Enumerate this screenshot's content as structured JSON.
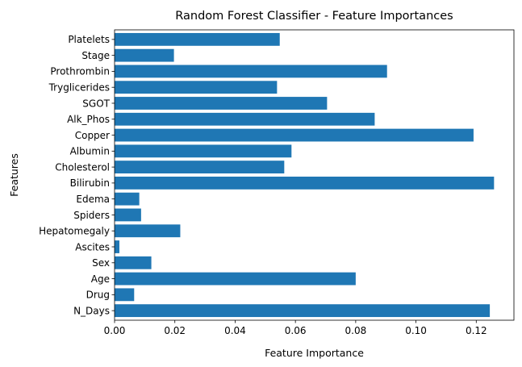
{
  "chart_data": {
    "type": "bar",
    "orientation": "horizontal",
    "title": "Random Forest Classifier - Feature Importances",
    "xlabel": "Feature Importance",
    "ylabel": "Features",
    "xlim": [
      0,
      0.1325
    ],
    "xticks": [
      "0.00",
      "0.02",
      "0.04",
      "0.06",
      "0.08",
      "0.10",
      "0.12"
    ],
    "grid": false,
    "bar_color": "#1f77b4",
    "categories": [
      "N_Days",
      "Drug",
      "Age",
      "Sex",
      "Ascites",
      "Hepatomegaly",
      "Spiders",
      "Edema",
      "Bilirubin",
      "Cholesterol",
      "Albumin",
      "Copper",
      "Alk_Phos",
      "SGOT",
      "Tryglicerides",
      "Prothrombin",
      "Stage",
      "Platelets"
    ],
    "values": [
      0.1245,
      0.0065,
      0.08,
      0.0122,
      0.0016,
      0.0218,
      0.0088,
      0.0082,
      0.1259,
      0.0563,
      0.0587,
      0.1191,
      0.0863,
      0.0705,
      0.0539,
      0.0904,
      0.0197,
      0.0548
    ]
  }
}
